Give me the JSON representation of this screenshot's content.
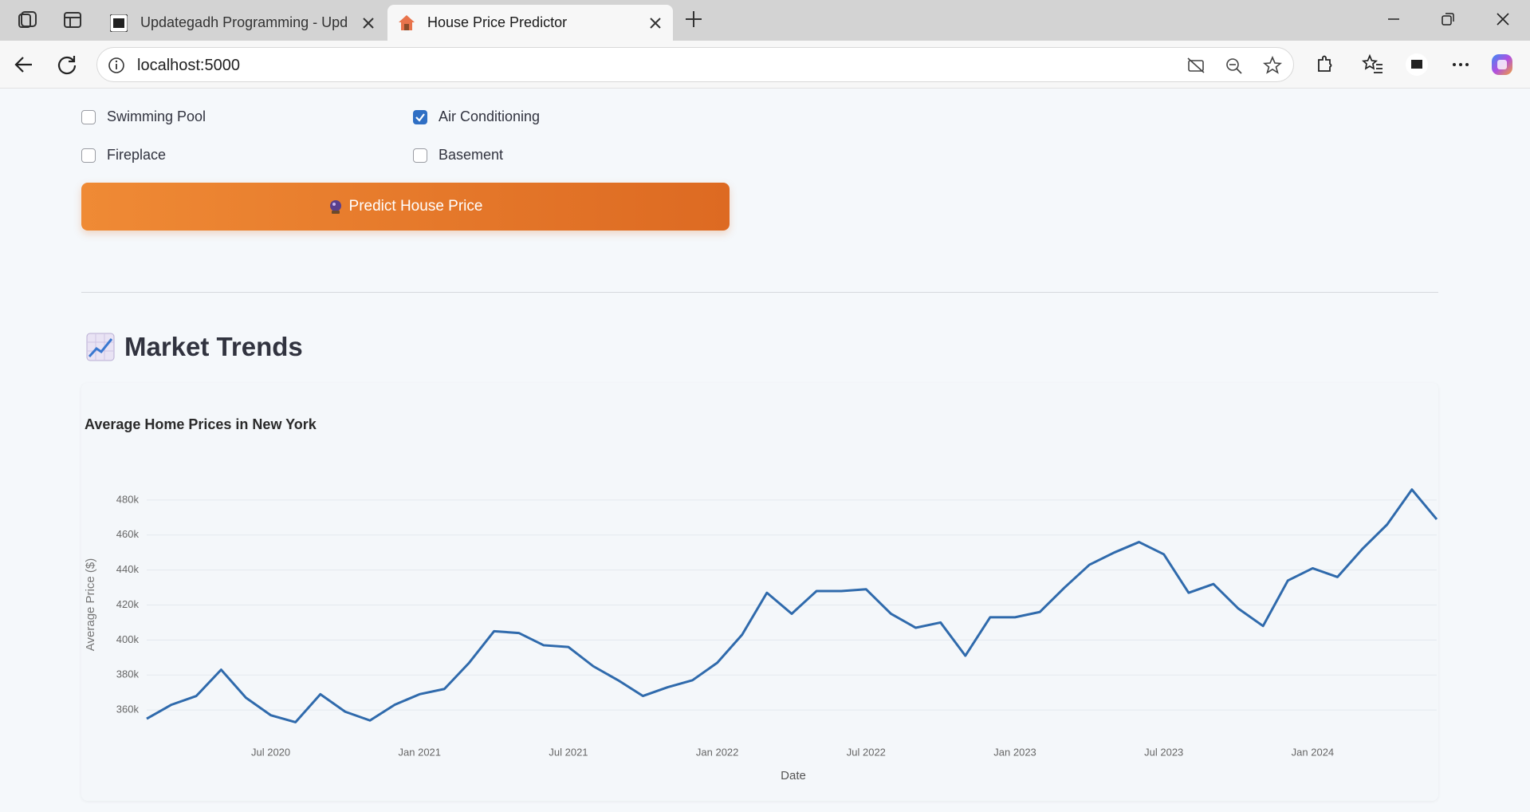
{
  "browser": {
    "tabs": [
      {
        "title": "Updategadh Programming - Upd"
      },
      {
        "title": "House Price Predictor"
      }
    ],
    "url": "localhost:5000"
  },
  "form": {
    "checkboxes": [
      {
        "label": "Swimming Pool",
        "checked": false
      },
      {
        "label": "Air Conditioning",
        "checked": true
      },
      {
        "label": "Fireplace",
        "checked": false
      },
      {
        "label": "Basement",
        "checked": false
      }
    ],
    "button": "Predict House Price"
  },
  "section": {
    "heading": "Market Trends"
  },
  "chart_data": {
    "type": "line",
    "title": "Average Home Prices in New York",
    "x_label": "Date",
    "y_label": "Average Price ($)",
    "color": "#2f6aac",
    "grid": true,
    "x": [
      "2020-02",
      "2020-03",
      "2020-04",
      "2020-05",
      "2020-06",
      "2020-07",
      "2020-08",
      "2020-09",
      "2020-10",
      "2020-11",
      "2020-12",
      "2021-01",
      "2021-02",
      "2021-03",
      "2021-04",
      "2021-05",
      "2021-06",
      "2021-07",
      "2021-08",
      "2021-09",
      "2021-10",
      "2021-11",
      "2021-12",
      "2022-01",
      "2022-02",
      "2022-03",
      "2022-04",
      "2022-05",
      "2022-06",
      "2022-07",
      "2022-08",
      "2022-09",
      "2022-10",
      "2022-11",
      "2022-12",
      "2023-01",
      "2023-02",
      "2023-03",
      "2023-04",
      "2023-05",
      "2023-06",
      "2023-07",
      "2023-08",
      "2023-09",
      "2023-10",
      "2023-11",
      "2023-12",
      "2024-01",
      "2024-02",
      "2024-03",
      "2024-04",
      "2024-05",
      "2024-06"
    ],
    "values": [
      355000,
      363000,
      368000,
      383000,
      367000,
      357000,
      353000,
      369000,
      359000,
      354000,
      363000,
      369000,
      372000,
      387000,
      405000,
      404000,
      397000,
      396000,
      385000,
      377000,
      368000,
      373000,
      377000,
      387000,
      403000,
      427000,
      415000,
      428000,
      428000,
      429000,
      415000,
      407000,
      410000,
      391000,
      413000,
      413000,
      416000,
      430000,
      443000,
      450000,
      456000,
      449000,
      427000,
      432000,
      418000,
      408000,
      434000,
      441000,
      436000,
      452000,
      466000,
      486000,
      469000
    ],
    "xlim": [
      "2020-02",
      "2024-06"
    ],
    "xticks": [
      {
        "value": "2020-07",
        "label": "Jul 2020"
      },
      {
        "value": "2021-01",
        "label": "Jan 2021"
      },
      {
        "value": "2021-07",
        "label": "Jul 2021"
      },
      {
        "value": "2022-01",
        "label": "Jan 2022"
      },
      {
        "value": "2022-07",
        "label": "Jul 2022"
      },
      {
        "value": "2023-01",
        "label": "Jan 2023"
      },
      {
        "value": "2023-07",
        "label": "Jul 2023"
      },
      {
        "value": "2024-01",
        "label": "Jan 2024"
      }
    ],
    "ylim": [
      350000,
      490000
    ],
    "yticks": [
      {
        "value": 360000,
        "label": "360k"
      },
      {
        "value": 380000,
        "label": "380k"
      },
      {
        "value": 400000,
        "label": "400k"
      },
      {
        "value": 420000,
        "label": "420k"
      },
      {
        "value": 440000,
        "label": "440k"
      },
      {
        "value": 460000,
        "label": "460k"
      },
      {
        "value": 480000,
        "label": "480k"
      }
    ]
  }
}
